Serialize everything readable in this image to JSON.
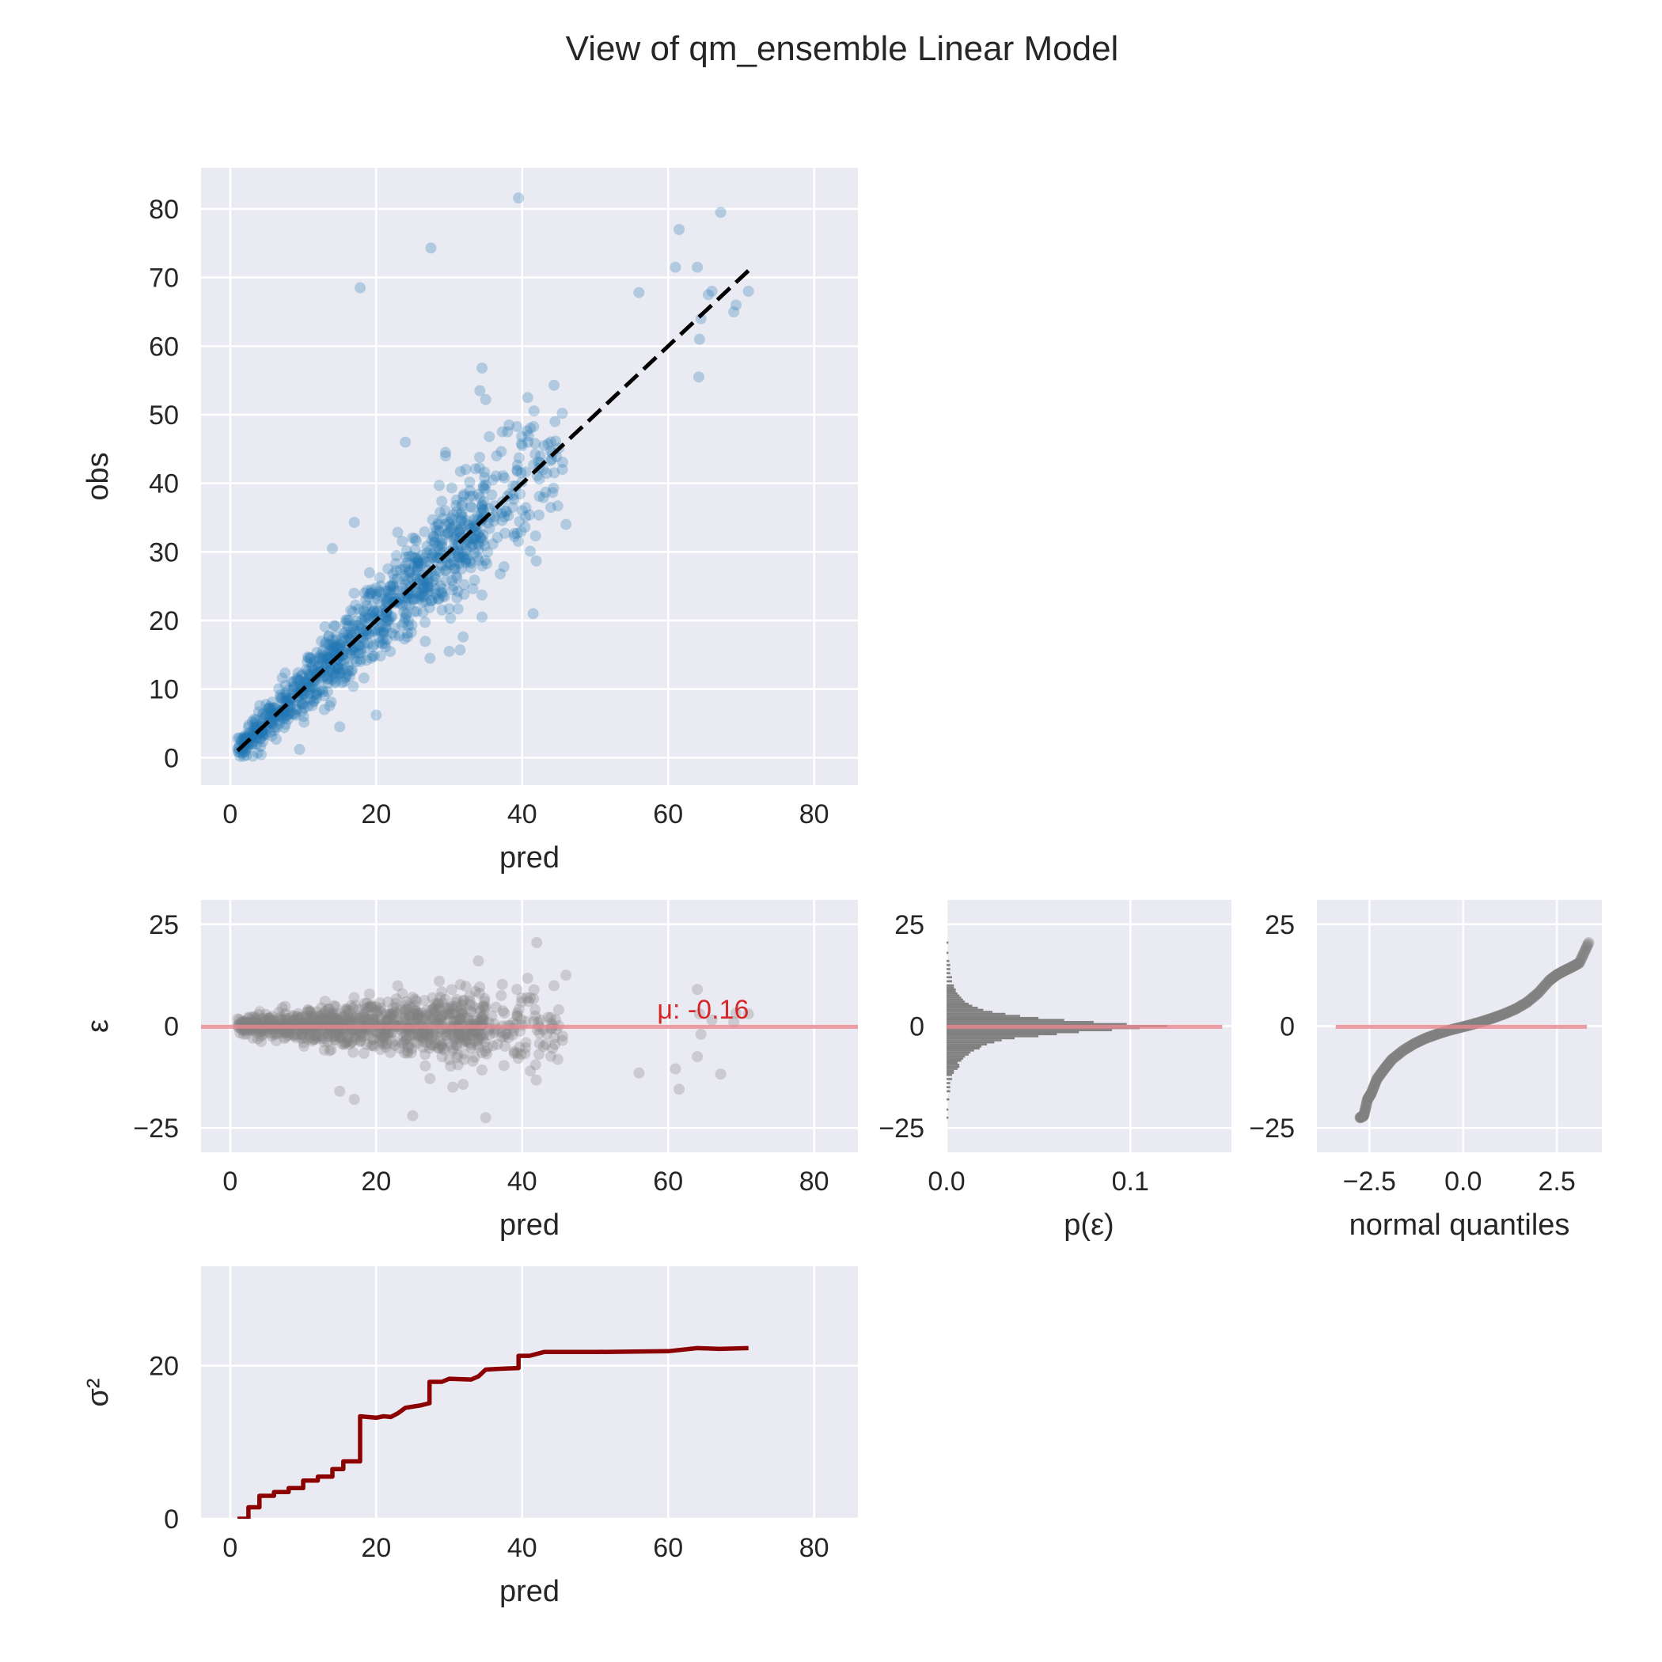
{
  "figure": {
    "title": "View of qm_ensemble Linear Model",
    "colors": {
      "background": "#eaeaf2",
      "grid": "#ffffff",
      "scatter": "#1f77b4",
      "residual": "#808080",
      "mean_line": "#e8868e",
      "annotation": "#d62728",
      "sigma_line": "#8b0000",
      "identity_line": "#000000"
    }
  },
  "chart_data": [
    {
      "id": "obs_vs_pred",
      "type": "scatter",
      "xlabel": "pred",
      "ylabel": "obs",
      "xlim": [
        -4,
        86
      ],
      "ylim": [
        -4,
        86
      ],
      "xticks": [
        0,
        20,
        40,
        60,
        80
      ],
      "yticks": [
        0,
        10,
        20,
        30,
        40,
        50,
        60,
        70,
        80
      ],
      "grid": true,
      "identity_line": {
        "x": [
          1,
          71
        ],
        "y": [
          1,
          71
        ],
        "style": "dashed"
      },
      "outliers": [
        [
          17.8,
          68.5
        ],
        [
          27.5,
          74.3
        ],
        [
          39.5,
          81.6
        ],
        [
          56,
          67.8
        ],
        [
          61,
          71.5
        ],
        [
          61.5,
          77
        ],
        [
          64,
          71.5
        ],
        [
          64.5,
          64
        ],
        [
          64.3,
          61
        ],
        [
          64.2,
          55.5
        ],
        [
          65.5,
          67.5
        ],
        [
          66,
          68
        ],
        [
          67.2,
          79.5
        ],
        [
          69,
          65
        ],
        [
          69.3,
          66
        ],
        [
          71,
          68
        ],
        [
          34.5,
          56.8
        ],
        [
          34.2,
          53.5
        ],
        [
          35,
          52.2
        ],
        [
          35.5,
          46.8
        ],
        [
          38,
          47.5
        ],
        [
          38.2,
          48.5
        ],
        [
          40,
          45.5
        ],
        [
          40.8,
          46
        ],
        [
          44.5,
          49
        ],
        [
          45.5,
          50.2
        ],
        [
          43,
          45.5
        ],
        [
          42.5,
          43
        ],
        [
          44.3,
          39.3
        ],
        [
          46,
          34
        ],
        [
          41.5,
          21
        ],
        [
          34.5,
          20.5
        ],
        [
          37,
          26.8
        ],
        [
          24,
          46
        ],
        [
          17,
          34.3
        ],
        [
          14,
          30.5
        ],
        [
          9.5,
          1.2
        ],
        [
          20,
          6.2
        ],
        [
          15,
          4.5
        ],
        [
          30,
          15.5
        ],
        [
          31.5,
          15.7
        ],
        [
          29.5,
          44.5
        ],
        [
          29.5,
          44
        ],
        [
          36,
          40.5
        ],
        [
          40,
          36
        ],
        [
          41,
          35.4
        ],
        [
          36.5,
          44
        ]
      ],
      "points": {
        "n": 1000,
        "x_range": [
          1,
          46
        ],
        "relation": "obs ≈ pred, spread grows with pred"
      }
    },
    {
      "id": "residuals_vs_pred",
      "type": "scatter",
      "xlabel": "pred",
      "ylabel": "ε",
      "xlim": [
        -4,
        86
      ],
      "ylim": [
        -31,
        31
      ],
      "xticks": [
        0,
        20,
        40,
        60,
        80
      ],
      "yticks": [
        -25,
        0,
        25
      ],
      "grid": true,
      "mean_line_y": -0.16,
      "annotation": "μ: -0.16",
      "outliers": [
        [
          56,
          -11.5
        ],
        [
          61,
          -10.5
        ],
        [
          61.5,
          -15.5
        ],
        [
          64,
          -7.5
        ],
        [
          64,
          9
        ],
        [
          64.3,
          3
        ],
        [
          64.5,
          -2
        ],
        [
          66,
          1.5
        ],
        [
          67.2,
          -11.8
        ],
        [
          69,
          1
        ],
        [
          69.3,
          3.2
        ],
        [
          71,
          3
        ],
        [
          42,
          20.5
        ],
        [
          46,
          12.5
        ],
        [
          45,
          4
        ],
        [
          44.5,
          -4.5
        ],
        [
          35,
          -22.5
        ],
        [
          25,
          -22
        ],
        [
          15,
          -16
        ],
        [
          17,
          -18
        ],
        [
          34,
          16
        ],
        [
          30.5,
          -15
        ]
      ]
    },
    {
      "id": "residual_histogram",
      "type": "bar",
      "orientation": "horizontal",
      "xlabel": "p(ε)",
      "ylabel": "",
      "xlim": [
        0,
        0.155
      ],
      "ylim": [
        -31,
        31
      ],
      "xticks": [
        0.0,
        0.1
      ],
      "xtick_labels": [
        "0.0",
        "0.1"
      ],
      "yticks": [
        -25,
        0,
        25
      ],
      "grid": true,
      "mean_line_y": -0.16,
      "bin_width": 0.5,
      "bins": [
        [
          -22.5,
          0.001
        ],
        [
          -20.5,
          0.001
        ],
        [
          -18.0,
          0.0015
        ],
        [
          -16.0,
          0.002
        ],
        [
          -15.0,
          0.002
        ],
        [
          -14.0,
          0.002
        ],
        [
          -13.0,
          0.003
        ],
        [
          -12.0,
          0.003
        ],
        [
          -11.5,
          0.004
        ],
        [
          -11.0,
          0.004
        ],
        [
          -10.5,
          0.006
        ],
        [
          -10.0,
          0.007
        ],
        [
          -9.5,
          0.007
        ],
        [
          -9.0,
          0.006
        ],
        [
          -8.5,
          0.008
        ],
        [
          -8.0,
          0.009
        ],
        [
          -7.5,
          0.01
        ],
        [
          -7.0,
          0.012
        ],
        [
          -6.5,
          0.013
        ],
        [
          -6.0,
          0.015
        ],
        [
          -5.5,
          0.018
        ],
        [
          -5.0,
          0.019
        ],
        [
          -4.5,
          0.022
        ],
        [
          -4.0,
          0.026
        ],
        [
          -3.5,
          0.03
        ],
        [
          -3.0,
          0.037
        ],
        [
          -2.5,
          0.05
        ],
        [
          -2.0,
          0.06
        ],
        [
          -1.5,
          0.072
        ],
        [
          -1.0,
          0.09
        ],
        [
          -0.5,
          0.105
        ],
        [
          0.0,
          0.12
        ],
        [
          0.5,
          0.098
        ],
        [
          1.0,
          0.08
        ],
        [
          1.5,
          0.064
        ],
        [
          2.0,
          0.05
        ],
        [
          2.5,
          0.04
        ],
        [
          3.0,
          0.032
        ],
        [
          3.5,
          0.025
        ],
        [
          4.0,
          0.02
        ],
        [
          4.5,
          0.017
        ],
        [
          5.0,
          0.014
        ],
        [
          5.5,
          0.012
        ],
        [
          6.0,
          0.01
        ],
        [
          6.5,
          0.009
        ],
        [
          7.0,
          0.008
        ],
        [
          7.5,
          0.007
        ],
        [
          8.0,
          0.006
        ],
        [
          8.5,
          0.005
        ],
        [
          9.0,
          0.005
        ],
        [
          9.5,
          0.004
        ],
        [
          10.0,
          0.004
        ],
        [
          11.0,
          0.003
        ],
        [
          12.0,
          0.003
        ],
        [
          13.0,
          0.002
        ],
        [
          14.0,
          0.002
        ],
        [
          15.0,
          0.002
        ],
        [
          16.0,
          0.0015
        ],
        [
          18.0,
          0.001
        ],
        [
          20.5,
          0.001
        ]
      ]
    },
    {
      "id": "residual_qq",
      "type": "scatter",
      "xlabel": "normal quantiles",
      "ylabel": "",
      "xlim": [
        -3.9,
        3.7
      ],
      "ylim": [
        -31,
        31
      ],
      "xticks": [
        -2.5,
        0.0,
        2.5
      ],
      "xtick_labels": [
        "−2.5",
        "0.0",
        "2.5"
      ],
      "yticks": [
        -25,
        0,
        25
      ],
      "grid": true,
      "mean_line": {
        "x": [
          -3.4,
          3.3
        ],
        "y": -0.16
      },
      "curve": [
        [
          -2.75,
          -22.5
        ],
        [
          -2.65,
          -22
        ],
        [
          -2.55,
          -18
        ],
        [
          -2.45,
          -16.5
        ],
        [
          -2.3,
          -13
        ],
        [
          -2.1,
          -10.5
        ],
        [
          -1.9,
          -8.2
        ],
        [
          -1.6,
          -6
        ],
        [
          -1.3,
          -4.3
        ],
        [
          -1.0,
          -3
        ],
        [
          -0.7,
          -2
        ],
        [
          -0.4,
          -1.1
        ],
        [
          -0.1,
          -0.4
        ],
        [
          0.2,
          0.3
        ],
        [
          0.5,
          1.1
        ],
        [
          0.8,
          2
        ],
        [
          1.1,
          3
        ],
        [
          1.4,
          4.2
        ],
        [
          1.7,
          5.8
        ],
        [
          2.0,
          8.1
        ],
        [
          2.3,
          11.2
        ],
        [
          2.5,
          12.6
        ],
        [
          2.7,
          13.6
        ],
        [
          2.9,
          14.5
        ],
        [
          3.1,
          15.5
        ],
        [
          3.35,
          20.5
        ]
      ]
    },
    {
      "id": "variance_vs_pred",
      "type": "line",
      "xlabel": "pred",
      "ylabel": "σ²",
      "xlim": [
        -4,
        86
      ],
      "ylim": [
        0,
        33
      ],
      "xticks": [
        0,
        20,
        40,
        60,
        80
      ],
      "yticks": [
        0,
        20
      ],
      "grid": true,
      "series": [
        {
          "points": [
            [
              1,
              0
            ],
            [
              2.5,
              0
            ],
            [
              2.5,
              1.5
            ],
            [
              4,
              1.5
            ],
            [
              4,
              3
            ],
            [
              6,
              3
            ],
            [
              6,
              3.5
            ],
            [
              8,
              3.5
            ],
            [
              8,
              4
            ],
            [
              10,
              4
            ],
            [
              10,
              5
            ],
            [
              12,
              5
            ],
            [
              12,
              5.5
            ],
            [
              14,
              5.5
            ],
            [
              14,
              6.5
            ],
            [
              15.5,
              6.5
            ],
            [
              15.5,
              7.5
            ],
            [
              17.8,
              7.5
            ],
            [
              17.8,
              13.4
            ],
            [
              20,
              13.2
            ],
            [
              21,
              13.4
            ],
            [
              22,
              13.3
            ],
            [
              23,
              13.8
            ],
            [
              24,
              14.5
            ],
            [
              26,
              14.8
            ],
            [
              27.3,
              15.1
            ],
            [
              27.3,
              17.9
            ],
            [
              29,
              17.9
            ],
            [
              30,
              18.3
            ],
            [
              33,
              18.2
            ],
            [
              34,
              18.6
            ],
            [
              35,
              19.5
            ],
            [
              37,
              19.6
            ],
            [
              39.5,
              19.7
            ],
            [
              39.5,
              21.3
            ],
            [
              41,
              21.3
            ],
            [
              43,
              21.8
            ],
            [
              50,
              21.8
            ],
            [
              60,
              21.9
            ],
            [
              64,
              22.3
            ],
            [
              67,
              22.2
            ],
            [
              71,
              22.3
            ]
          ]
        }
      ]
    }
  ]
}
